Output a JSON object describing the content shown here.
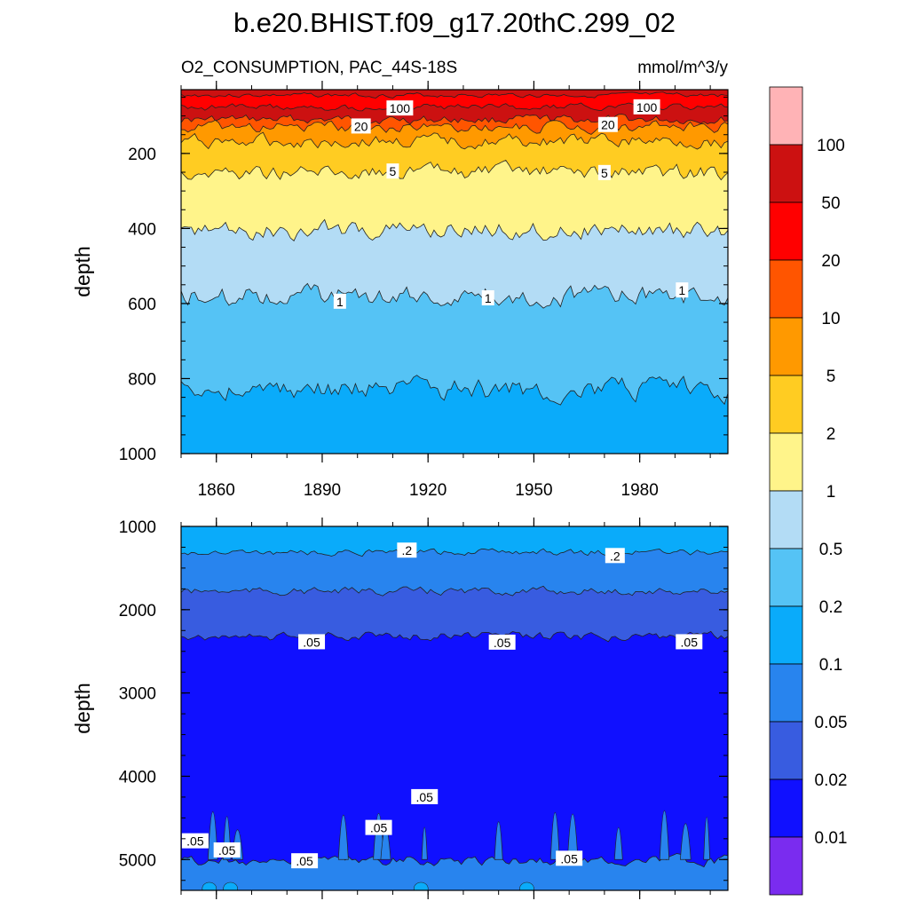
{
  "chart_data": {
    "type": "heatmap",
    "title": "b.e20.BHIST.f09_g17.20thC.299_02",
    "subtitle_left": "O2_CONSUMPTION, PAC_44S-18S",
    "subtitle_right": "mmol/m^3/y",
    "xlim": [
      1850,
      2005
    ],
    "x_ticks": [
      "1860",
      "1890",
      "1920",
      "1950",
      "1980"
    ],
    "x_tick_values": [
      1860,
      1890,
      1920,
      1950,
      1980
    ],
    "colorbar": {
      "labels": [
        "100",
        "50",
        "20",
        "10",
        "5",
        "2",
        "1",
        "0.5",
        "0.2",
        "0.1",
        "0.05",
        "0.02",
        "0.01"
      ],
      "levels": [
        100,
        50,
        20,
        10,
        5,
        2,
        1,
        0.5,
        0.2,
        0.1,
        0.05,
        0.02,
        0.01
      ],
      "colors": [
        "#ffb3b6",
        "#cc1111",
        "#ff0000",
        "#ff5500",
        "#ff9900",
        "#ffcc22",
        "#fff48a",
        "#b3dcf5",
        "#55c3f5",
        "#0aabfa",
        "#2884ee",
        "#385ce0",
        "#1010ff",
        "#7a2cef"
      ]
    },
    "panels": [
      {
        "ylabel": "depth",
        "ylim": [
          1000,
          30
        ],
        "y_ticks": [
          "200",
          "400",
          "600",
          "800",
          "1000"
        ],
        "y_tick_values": [
          200,
          400,
          600,
          800,
          1000
        ],
        "contour_depths": [
          {
            "level": 50,
            "depth": 45
          },
          {
            "level": 100,
            "depth": 77
          },
          {
            "level": 20,
            "depth": 110
          },
          {
            "level": 10,
            "depth": 130
          },
          {
            "level": 5,
            "depth": 168
          },
          {
            "level": 2,
            "depth": 250
          },
          {
            "level": 1,
            "depth": 405
          },
          {
            "level": 0.5,
            "depth": 580
          },
          {
            "level": 0.2,
            "depth": 830
          }
        ],
        "contour_labels": [
          {
            "text": "100",
            "x": 1912,
            "depth": 80
          },
          {
            "text": "100",
            "x": 1982,
            "depth": 77
          },
          {
            "text": "20",
            "x": 1901,
            "depth": 128
          },
          {
            "text": "20",
            "x": 1971,
            "depth": 124
          },
          {
            "text": "5",
            "x": 1910,
            "depth": 248
          },
          {
            "text": "5",
            "x": 1970,
            "depth": 252
          },
          {
            "text": "1",
            "x": 1895,
            "depth": 595
          },
          {
            "text": "1",
            "x": 1937,
            "depth": 586
          },
          {
            "text": "1",
            "x": 1992,
            "depth": 565
          }
        ]
      },
      {
        "ylabel": "depth",
        "ylim": [
          1000,
          5370
        ],
        "y_ticks": [
          "1000",
          "2000",
          "3000",
          "4000",
          "5000"
        ],
        "y_tick_values": [
          1000,
          2000,
          3000,
          4000,
          5000
        ],
        "contour_depths": [
          {
            "level": 0.1,
            "depth": 1310
          },
          {
            "level": 0.05,
            "depth": 1780
          },
          {
            "level": 0.02,
            "depth": 2320
          },
          {
            "level": 0.05,
            "depth": 5010
          }
        ],
        "contour_labels": [
          {
            "text": ".2",
            "x": 1914,
            "depth": 1290
          },
          {
            "text": ".2",
            "x": 1973,
            "depth": 1355
          },
          {
            "text": ".05",
            "x": 1887,
            "depth": 2390
          },
          {
            "text": ".05",
            "x": 1941,
            "depth": 2395
          },
          {
            "text": ".05",
            "x": 1994,
            "depth": 2390
          },
          {
            "text": ".05",
            "x": 1919,
            "depth": 4250
          },
          {
            "text": ".05",
            "x": 1854,
            "depth": 4780
          },
          {
            "text": ".05",
            "x": 1863,
            "depth": 4890
          },
          {
            "text": ".05",
            "x": 1906,
            "depth": 4620
          },
          {
            "text": ".05",
            "x": 1885,
            "depth": 5020
          },
          {
            "text": ".05",
            "x": 1960,
            "depth": 4990
          }
        ]
      }
    ]
  }
}
